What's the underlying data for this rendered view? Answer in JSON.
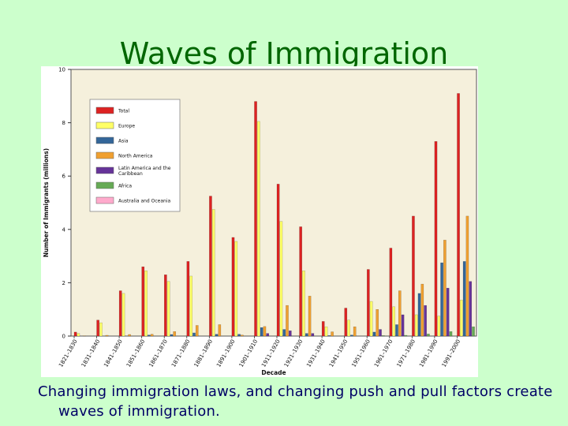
{
  "slide": {
    "title": "Waves of Immigration",
    "caption": "Changing immigration laws, and changing push and pull factors create waves of immigration."
  },
  "chart_data": {
    "type": "bar",
    "title": "",
    "xlabel": "Decade",
    "ylabel": "Number of Immigrants (millions)",
    "ylim": [
      0,
      10
    ],
    "yticks": [
      0,
      2,
      4,
      6,
      8,
      10
    ],
    "grid": false,
    "legend_position": "top-left",
    "categories": [
      "1821–1830",
      "1831–1840",
      "1841–1850",
      "1851–1860",
      "1861–1870",
      "1871–1880",
      "1881–1890",
      "1891–1900",
      "1901–1910",
      "1911–1920",
      "1921–1930",
      "1931–1940",
      "1941–1950",
      "1951–1960",
      "1961–1970",
      "1971–1980",
      "1981–1990",
      "1991–2000"
    ],
    "series": [
      {
        "name": "Total",
        "color": "#dd2222",
        "values": [
          0.15,
          0.6,
          1.7,
          2.6,
          2.3,
          2.8,
          5.25,
          3.7,
          8.8,
          5.7,
          4.1,
          0.55,
          1.05,
          2.5,
          3.3,
          4.5,
          7.3,
          9.1
        ]
      },
      {
        "name": "Europe",
        "color": "#ffff66",
        "values": [
          0.1,
          0.5,
          1.6,
          2.45,
          2.05,
          2.25,
          4.75,
          3.55,
          8.05,
          4.3,
          2.45,
          0.35,
          0.6,
          1.3,
          1.1,
          0.8,
          0.75,
          1.35
        ]
      },
      {
        "name": "Asia",
        "color": "#336699",
        "values": [
          0.0,
          0.0,
          0.0,
          0.04,
          0.06,
          0.12,
          0.07,
          0.07,
          0.32,
          0.25,
          0.1,
          0.02,
          0.04,
          0.15,
          0.43,
          1.6,
          2.75,
          2.8
        ]
      },
      {
        "name": "North America",
        "color": "#f0a030",
        "values": [
          0.01,
          0.03,
          0.06,
          0.07,
          0.17,
          0.4,
          0.43,
          0.04,
          0.36,
          1.15,
          1.5,
          0.16,
          0.35,
          1.0,
          1.7,
          1.95,
          3.6,
          4.5
        ]
      },
      {
        "name": "Latin America and the Caribbean",
        "color": "#663399",
        "values": [
          0.0,
          0.0,
          0.0,
          0.0,
          0.0,
          0.0,
          0.0,
          0.0,
          0.1,
          0.2,
          0.1,
          0.0,
          0.0,
          0.25,
          0.8,
          1.15,
          1.8,
          2.05
        ]
      },
      {
        "name": "Africa",
        "color": "#66aa55",
        "values": [
          0.0,
          0.0,
          0.0,
          0.0,
          0.0,
          0.0,
          0.0,
          0.0,
          0.0,
          0.0,
          0.0,
          0.0,
          0.0,
          0.02,
          0.03,
          0.08,
          0.17,
          0.35
        ]
      },
      {
        "name": "Australia and Oceania",
        "color": "#ffaacc",
        "values": [
          0.0,
          0.0,
          0.0,
          0.0,
          0.0,
          0.0,
          0.0,
          0.0,
          0.0,
          0.0,
          0.0,
          0.0,
          0.0,
          0.0,
          0.0,
          0.0,
          0.0,
          0.0
        ]
      }
    ]
  }
}
